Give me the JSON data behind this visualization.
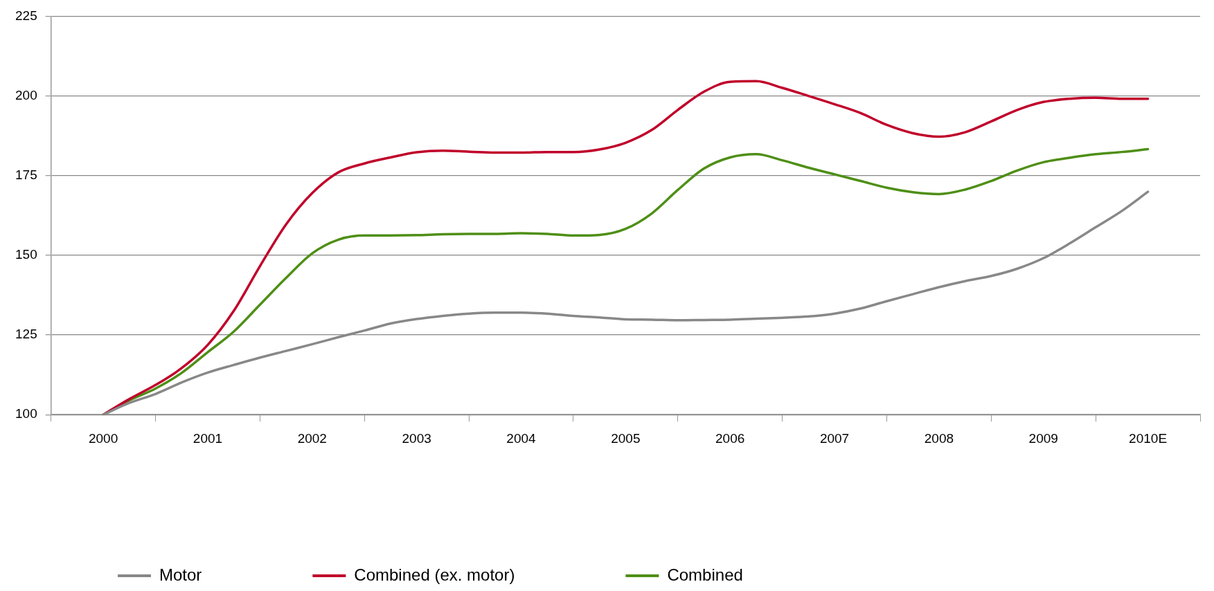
{
  "chart_data": {
    "type": "line",
    "x": [
      2000,
      2000.25,
      2000.5,
      2000.75,
      2001,
      2001.25,
      2001.5,
      2001.75,
      2002,
      2002.25,
      2002.5,
      2002.75,
      2003,
      2003.25,
      2003.5,
      2003.75,
      2004,
      2004.25,
      2004.5,
      2004.75,
      2005,
      2005.25,
      2005.5,
      2005.75,
      2006,
      2006.25,
      2006.5,
      2006.75,
      2007,
      2007.25,
      2007.5,
      2007.75,
      2008,
      2008.25,
      2008.5,
      2008.75,
      2009,
      2009.25,
      2009.5,
      2009.75,
      2010
    ],
    "series": [
      {
        "name": "Motor",
        "color": "#888888",
        "values": [
          100,
          103.7,
          106.5,
          110.1,
          113.2,
          115.6,
          117.9,
          120,
          122.1,
          124.3,
          126.4,
          128.6,
          130,
          131,
          131.7,
          132,
          132,
          131.7,
          131,
          130.5,
          129.9,
          129.8,
          129.6,
          129.7,
          129.8,
          130.1,
          130.4,
          130.8,
          131.7,
          133.3,
          135.6,
          137.8,
          140,
          141.9,
          143.5,
          145.8,
          149.1,
          153.7,
          158.8,
          163.9,
          169.9
        ]
      },
      {
        "name": "Combined (ex. motor)",
        "color": "#c0002a",
        "values": [
          100,
          104.9,
          109.3,
          114.6,
          121.9,
          132.6,
          146.6,
          159.7,
          169.5,
          176,
          178.8,
          180.7,
          182.3,
          182.8,
          182.5,
          182.2,
          182.2,
          182.4,
          182.4,
          183.2,
          185.3,
          189.3,
          195.6,
          201.3,
          204.4,
          204.6,
          202.5,
          200,
          197.4,
          194.6,
          190.9,
          188.3,
          187.2,
          188.6,
          192,
          195.6,
          198.1,
          199.1,
          199.4,
          199.1,
          199.1
        ]
      },
      {
        "name": "Combined",
        "color": "#4e8f16",
        "values": [
          100,
          104.5,
          108.2,
          113.1,
          119.6,
          126.1,
          134.5,
          142.9,
          150.6,
          154.9,
          156.2,
          156.2,
          156.3,
          156.6,
          156.7,
          156.7,
          156.9,
          156.7,
          156.2,
          156.4,
          158.3,
          163.1,
          170.5,
          177.2,
          180.7,
          181.7,
          179.8,
          177.5,
          175.4,
          173.3,
          171.2,
          169.8,
          169.2,
          170.6,
          173.3,
          176.6,
          179.2,
          180.6,
          181.7,
          182.4,
          183.3
        ]
      }
    ],
    "xlim": [
      1999.5,
      2010.5
    ],
    "xticks": [
      {
        "value": 1999.5,
        "label": null
      },
      {
        "value": 2000,
        "label": "2000"
      },
      {
        "value": 2000.5,
        "label": null
      },
      {
        "value": 2001,
        "label": "2001"
      },
      {
        "value": 2001.5,
        "label": null
      },
      {
        "value": 2002,
        "label": "2002"
      },
      {
        "value": 2002.5,
        "label": null
      },
      {
        "value": 2003,
        "label": "2003"
      },
      {
        "value": 2003.5,
        "label": null
      },
      {
        "value": 2004,
        "label": "2004"
      },
      {
        "value": 2004.5,
        "label": null
      },
      {
        "value": 2005,
        "label": "2005"
      },
      {
        "value": 2005.5,
        "label": null
      },
      {
        "value": 2006,
        "label": "2006"
      },
      {
        "value": 2006.5,
        "label": null
      },
      {
        "value": 2007,
        "label": "2007"
      },
      {
        "value": 2007.5,
        "label": null
      },
      {
        "value": 2008,
        "label": "2008"
      },
      {
        "value": 2008.5,
        "label": null
      },
      {
        "value": 2009,
        "label": "2009"
      },
      {
        "value": 2009.5,
        "label": null
      },
      {
        "value": 2010,
        "label": "2010E"
      },
      {
        "value": 2010.5,
        "label": null
      }
    ],
    "ylim": [
      100,
      225
    ],
    "yticks": [
      100,
      125,
      150,
      175,
      200,
      225
    ],
    "grid": "y",
    "legend": "bottom",
    "marker": "none",
    "line_style": "solid"
  }
}
